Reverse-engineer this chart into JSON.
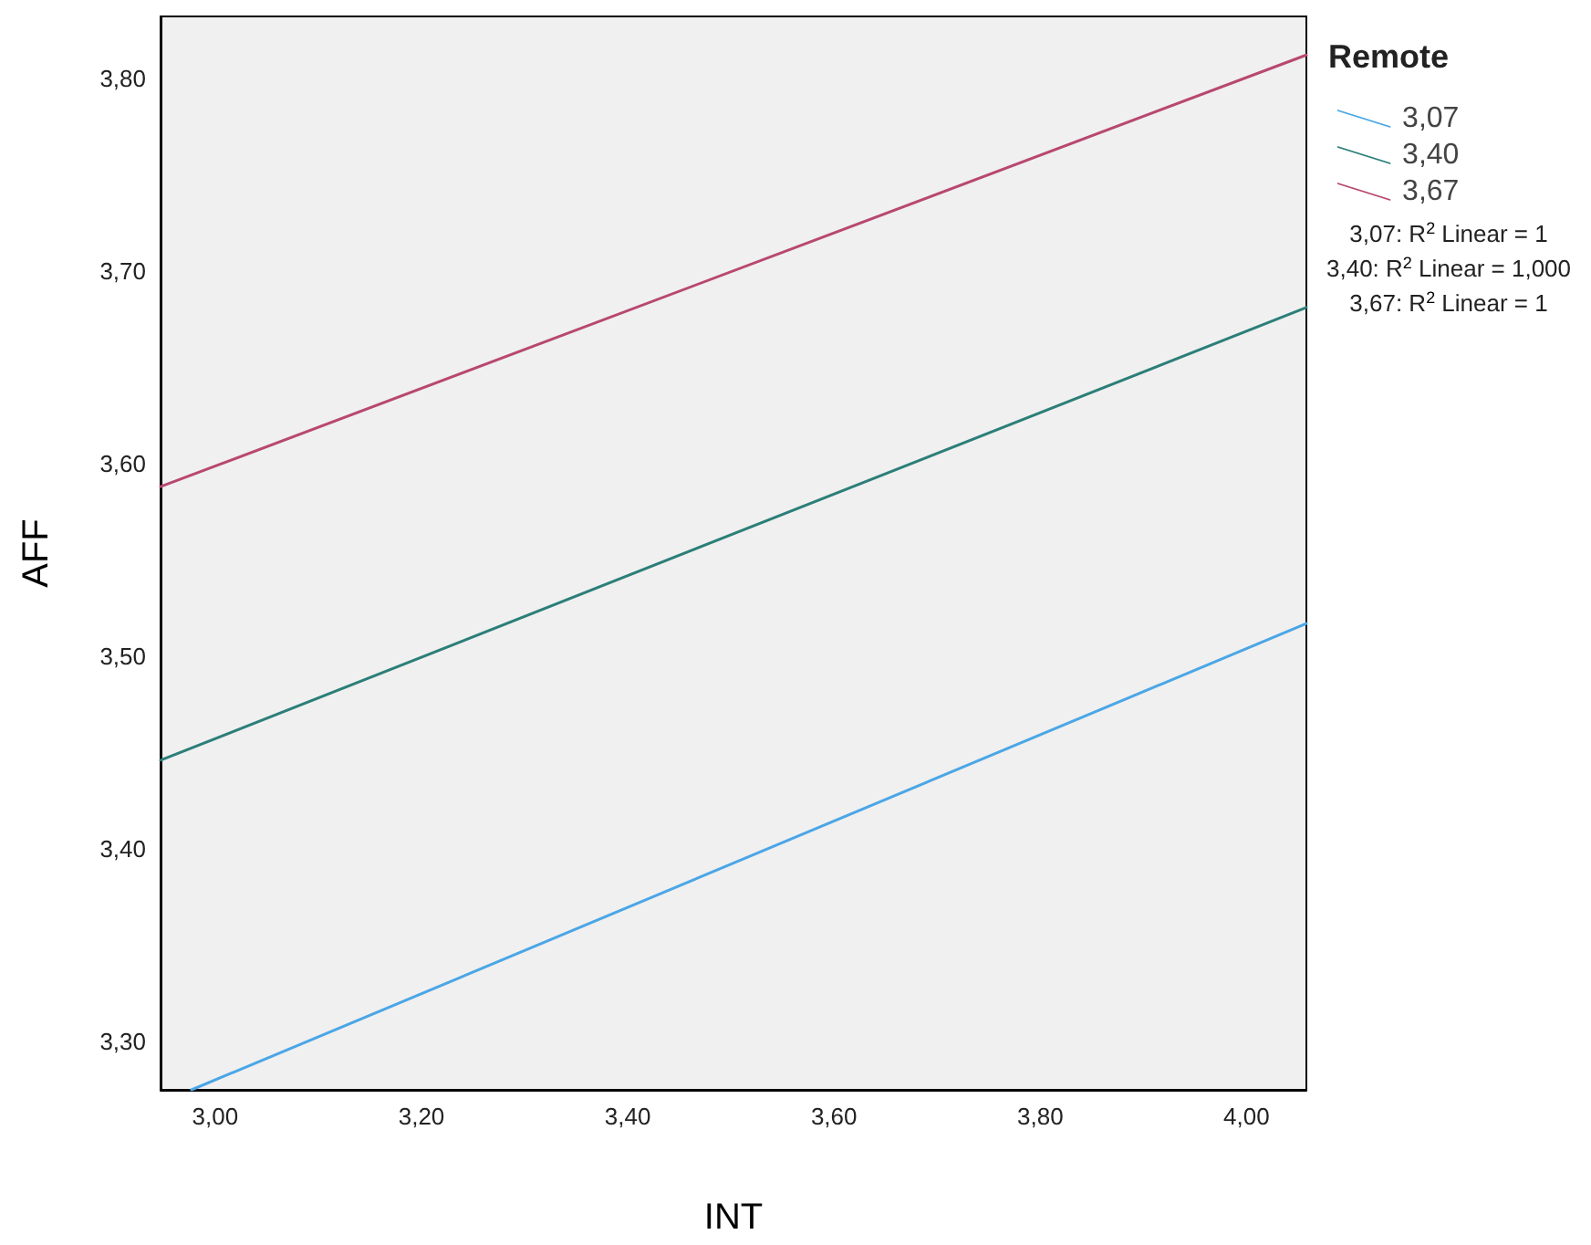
{
  "chart_data": {
    "type": "line",
    "xlabel": "INT",
    "ylabel": "AFF",
    "legend_title": "Remote",
    "legend": "right",
    "grid": false,
    "marker": "none",
    "line_style": "solid",
    "xlim": [
      2.947,
      4.058
    ],
    "ylim": [
      3.275,
      3.832
    ],
    "xticks": [
      {
        "value": 3.0,
        "label": "3,00"
      },
      {
        "value": 3.2,
        "label": "3,20"
      },
      {
        "value": 3.4,
        "label": "3,40"
      },
      {
        "value": 3.6,
        "label": "3,60"
      },
      {
        "value": 3.8,
        "label": "3,80"
      },
      {
        "value": 4.0,
        "label": "4,00"
      }
    ],
    "yticks": [
      {
        "value": 3.3,
        "label": "3,30"
      },
      {
        "value": 3.4,
        "label": "3,40"
      },
      {
        "value": 3.5,
        "label": "3,50"
      },
      {
        "value": 3.6,
        "label": "3,60"
      },
      {
        "value": 3.7,
        "label": "3,70"
      },
      {
        "value": 3.8,
        "label": "3,80"
      }
    ],
    "series": [
      {
        "name": "3,07",
        "color": "#4ba6e6",
        "x": [
          2.977,
          4.058
        ],
        "values": [
          3.275,
          3.517
        ]
      },
      {
        "name": "3,40",
        "color": "#2b7f78",
        "x": [
          2.947,
          4.058
        ],
        "values": [
          3.446,
          3.681
        ]
      },
      {
        "name": "3,67",
        "color": "#b84870",
        "x": [
          2.947,
          4.058
        ],
        "values": [
          3.588,
          3.812
        ]
      }
    ],
    "annotations": [
      "3,07: R$^{2}$ Linear = 1",
      "3,40: R$^{2}$ Linear = 1,000",
      "3,67: R$^{2}$ Linear = 1"
    ]
  }
}
